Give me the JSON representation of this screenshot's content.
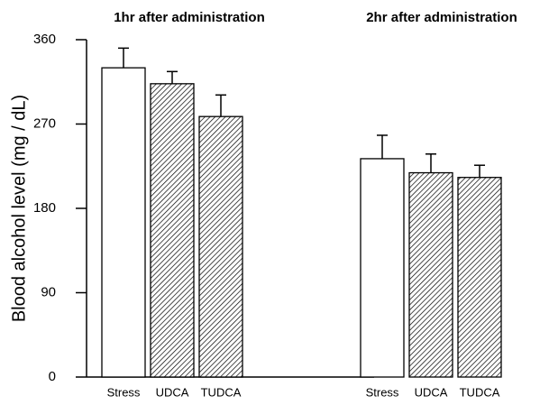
{
  "chart_data": {
    "type": "bar",
    "ylabel": "Blood alcohol level (mg / dL)",
    "groups": [
      "1hr after administration",
      "2hr after administration"
    ],
    "categories": [
      "Stress",
      "UDCA",
      "TUDCA"
    ],
    "values": [
      [
        330,
        313,
        278
      ],
      [
        233,
        218,
        213
      ]
    ],
    "errors": [
      [
        21,
        13,
        23
      ],
      [
        25,
        20,
        13
      ]
    ],
    "fills": [
      "plain",
      "hatched",
      "hatched"
    ],
    "ylim": [
      0,
      360
    ],
    "yticks": [
      0,
      90,
      180,
      270,
      360
    ]
  }
}
